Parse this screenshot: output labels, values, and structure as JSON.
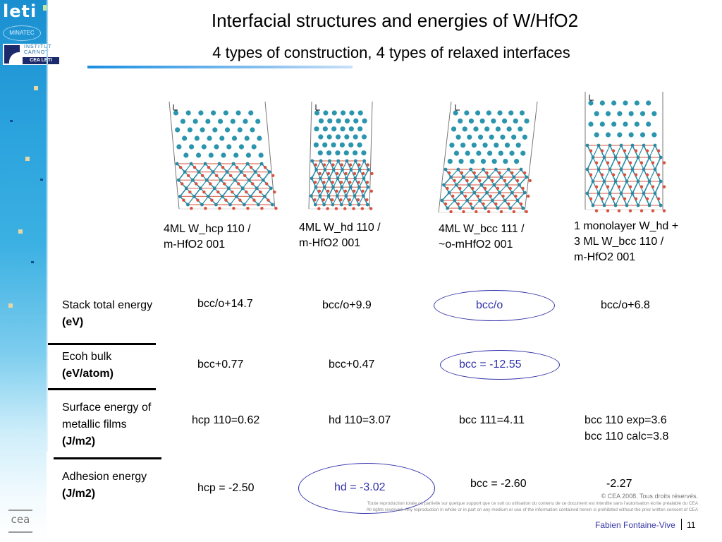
{
  "branding": {
    "leti_logo": "leti",
    "minatec_logo": "MINATEC",
    "carnot_logo": [
      "INSTITUT",
      "CARNOT",
      "CEA LETI"
    ],
    "cea_logo": "cea"
  },
  "header": {
    "title": "Interfacial structures and energies of W/HfO2",
    "subtitle": "4 types of construction, 4 types of relaxed interfaces"
  },
  "structures": [
    {
      "caption_line1": "4ML W_hcp 110 /",
      "caption_line2": "m-HfO2 001",
      "caption_line3": ""
    },
    {
      "caption_line1": "4ML W_hd 110 /",
      "caption_line2": "m-HfO2 001",
      "caption_line3": ""
    },
    {
      "caption_line1": "4ML W_bcc 111 /",
      "caption_line2": "~o-mHfO2 001",
      "caption_line3": ""
    },
    {
      "caption_line1": "1 monolayer W_hd +",
      "caption_line2": "3 ML W_bcc 110 /",
      "caption_line3": "m-HfO2 001"
    }
  ],
  "table": {
    "rows": [
      {
        "label": "Stack total energy",
        "unit": "(eV)",
        "values": [
          "bcc/o+14.7",
          "bcc/o+9.9",
          "bcc/o",
          "bcc/o+6.8"
        ]
      },
      {
        "label": "Ecoh bulk",
        "unit": "(eV/atom)",
        "values": [
          "bcc+0.77",
          "bcc+0.47",
          "bcc = -12.55",
          ""
        ]
      },
      {
        "label_line1": "Surface energy of",
        "label_line2": "metallic films",
        "unit": "(J/m2)",
        "values": [
          "hcp 110=0.62",
          "hd 110=3.07",
          "bcc 111=4.11",
          "bcc 110 exp=3.6",
          "bcc 110 calc=3.8"
        ]
      },
      {
        "label": "Adhesion energy",
        "unit": "(J/m2)",
        "values": [
          "hcp = -2.50",
          "hd = -3.02",
          "bcc = -2.60",
          "-2.27"
        ]
      }
    ],
    "highlight_color": "#3333aa"
  },
  "footer": {
    "copyright": "© CEA 2008. Tous droits réservés.",
    "notice_fr": "Toute reproduction totale ou partielle sur quelque support que ce soit ou utilisation du contenu de ce document est interdite sans l'autorisation écrite préalable du CEA",
    "notice_en": "All rights reserved. Any reproduction in whole or in part on any medium or use of the information contained herein is prohibited without the prior written consent of CEA",
    "author": "Fabien Fontaine-Vive",
    "page_number": "11"
  }
}
